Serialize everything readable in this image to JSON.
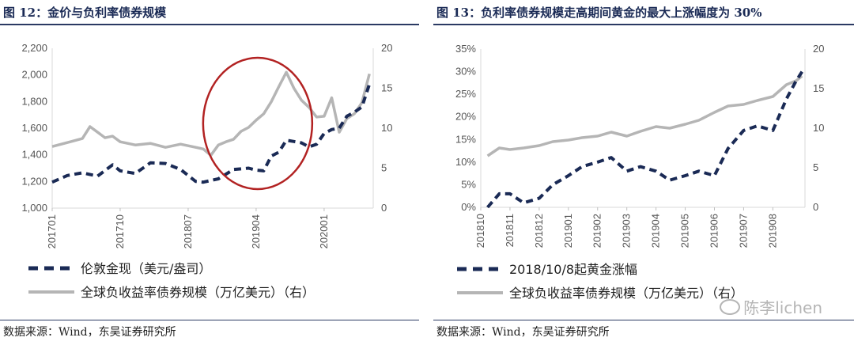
{
  "chart_data": [
    {
      "type": "line",
      "title": "图 12：金价与负利率债券规模",
      "source": "数据来源：Wind，东吴证券研究所",
      "colors": {
        "gold": "#1a2a55",
        "bonds": "#b5b5b5",
        "circle": "#b22222",
        "accent": "#1a2a55"
      },
      "x_ticks": [
        "201701",
        "201710",
        "201807",
        "201904",
        "202001"
      ],
      "y_left": {
        "ticks": [
          "1,000",
          "1,200",
          "1,400",
          "1,600",
          "1,800",
          "2,000",
          "2,200"
        ],
        "range": [
          1000,
          2200
        ]
      },
      "y_right": {
        "ticks": [
          "0",
          "5",
          "10",
          "15",
          "20"
        ],
        "range": [
          0,
          20
        ]
      },
      "annotation": "circle-highlight",
      "series": [
        {
          "name": "伦敦金现（美元/盎司）",
          "axis": "left",
          "style": "dashed",
          "x": [
            "2017-01",
            "2017-03",
            "2017-05",
            "2017-07",
            "2017-09",
            "2017-10",
            "2017-12",
            "2018-02",
            "2018-04",
            "2018-06",
            "2018-08",
            "2018-09",
            "2018-11",
            "2019-01",
            "2019-03",
            "2019-04",
            "2019-05",
            "2019-06",
            "2019-07",
            "2019-08",
            "2019-09",
            "2019-10",
            "2019-11",
            "2019-12",
            "2020-01",
            "2020-02",
            "2020-03",
            "2020-04",
            "2020-05",
            "2020-06",
            "2020-07"
          ],
          "values": [
            1195,
            1245,
            1265,
            1240,
            1325,
            1280,
            1260,
            1340,
            1335,
            1290,
            1200,
            1195,
            1220,
            1290,
            1300,
            1285,
            1280,
            1390,
            1420,
            1510,
            1500,
            1490,
            1460,
            1480,
            1560,
            1590,
            1600,
            1690,
            1720,
            1760,
            1930
          ]
        },
        {
          "name": "全球负收益率债券规模（万亿美元）（右）",
          "axis": "right",
          "style": "solid",
          "x": [
            "2017-01",
            "2017-03",
            "2017-05",
            "2017-06",
            "2017-08",
            "2017-09",
            "2017-10",
            "2017-12",
            "2018-02",
            "2018-04",
            "2018-06",
            "2018-08",
            "2018-09",
            "2018-10",
            "2018-11",
            "2018-12",
            "2019-01",
            "2019-02",
            "2019-03",
            "2019-04",
            "2019-05",
            "2019-06",
            "2019-07",
            "2019-08",
            "2019-09",
            "2019-10",
            "2019-11",
            "2019-12",
            "2020-01",
            "2020-02",
            "2020-03",
            "2020-04",
            "2020-05",
            "2020-06",
            "2020-07"
          ],
          "values": [
            7.7,
            8.2,
            8.7,
            10.2,
            8.8,
            9.0,
            8.3,
            7.9,
            8.1,
            7.6,
            8.0,
            7.6,
            7.4,
            6.6,
            7.9,
            8.3,
            8.6,
            9.6,
            10.1,
            11.0,
            11.8,
            13.3,
            15.2,
            17.0,
            15.0,
            13.5,
            12.6,
            11.4,
            11.5,
            13.8,
            9.5,
            11.2,
            11.8,
            13.2,
            16.8
          ]
        }
      ],
      "legend": [
        "伦敦金现（美元/盎司）",
        "全球负收益率债券规模（万亿美元）（右）"
      ]
    },
    {
      "type": "line",
      "title": "图 13：负利率债券规模走高期间黄金的最大上涨幅度为 30%",
      "source": "数据来源：Wind，东吴证券研究所",
      "colors": {
        "gold": "#1a2a55",
        "bonds": "#b5b5b5"
      },
      "x_ticks": [
        "201810",
        "201811",
        "201812",
        "201901",
        "201902",
        "201903",
        "201904",
        "201905",
        "201906",
        "201907",
        "201908"
      ],
      "y_left": {
        "ticks": [
          "0%",
          "5%",
          "10%",
          "15%",
          "20%",
          "25%",
          "30%",
          "35%"
        ],
        "range": [
          0,
          35
        ]
      },
      "y_right": {
        "ticks": [
          "0",
          "5",
          "10",
          "15",
          "20"
        ],
        "range": [
          0,
          20
        ]
      },
      "series": [
        {
          "name": "2018/10/8起黄金涨幅",
          "axis": "left",
          "style": "dashed",
          "unit": "%",
          "x": [
            "2018-10-08",
            "2018-10-20",
            "2018-11-01",
            "2018-11-15",
            "2018-12-01",
            "2018-12-15",
            "2019-01-01",
            "2019-01-15",
            "2019-02-01",
            "2019-02-15",
            "2019-03-01",
            "2019-03-15",
            "2019-04-01",
            "2019-04-15",
            "2019-05-01",
            "2019-05-15",
            "2019-06-01",
            "2019-06-15",
            "2019-07-01",
            "2019-07-15",
            "2019-08-01",
            "2019-08-15",
            "2019-08-25",
            "2019-09-01"
          ],
          "values": [
            0,
            3,
            3,
            1,
            2,
            5,
            7,
            9,
            10,
            11,
            8,
            9,
            8,
            6,
            7,
            8,
            7,
            13,
            17,
            18,
            17,
            24,
            28,
            30
          ]
        },
        {
          "name": "全球负收益率债券规模（万亿美元）（右）",
          "axis": "right",
          "style": "solid",
          "x": [
            "2018-10-08",
            "2018-10-20",
            "2018-11-01",
            "2018-11-15",
            "2018-12-01",
            "2018-12-15",
            "2019-01-01",
            "2019-01-15",
            "2019-02-01",
            "2019-02-15",
            "2019-03-01",
            "2019-03-15",
            "2019-04-01",
            "2019-04-15",
            "2019-05-01",
            "2019-05-15",
            "2019-06-01",
            "2019-06-15",
            "2019-07-01",
            "2019-07-15",
            "2019-08-01",
            "2019-08-15",
            "2019-08-25",
            "2019-09-01"
          ],
          "values": [
            6.5,
            7.5,
            7.3,
            7.5,
            7.8,
            8.3,
            8.5,
            8.8,
            9.0,
            9.5,
            9.0,
            9.6,
            10.2,
            10.0,
            10.5,
            11.0,
            12.0,
            12.8,
            13.0,
            13.5,
            14.0,
            15.5,
            16.0,
            16.6
          ]
        }
      ],
      "legend": [
        "2018/10/8起黄金涨幅",
        "全球负收益率债券规模（万亿美元）（右）"
      ]
    }
  ],
  "watermark": "陈李lichen"
}
